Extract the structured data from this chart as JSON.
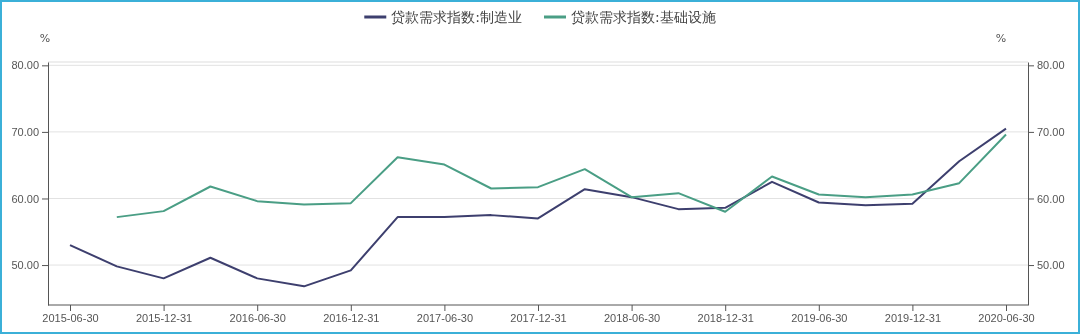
{
  "chart_data": {
    "type": "line",
    "categories": [
      "2015-06-30",
      null,
      "2015-12-31",
      null,
      "2016-06-30",
      null,
      "2016-12-31",
      null,
      "2017-06-30",
      null,
      "2017-12-31",
      null,
      "2018-06-30",
      null,
      "2018-12-31",
      null,
      "2019-06-30",
      null,
      "2019-12-31",
      null,
      "2020-06-30"
    ],
    "series": [
      {
        "name": "贷款需求指数:制造业",
        "color": "#3d3f6e",
        "values": [
          53.0,
          49.8,
          48.0,
          51.1,
          48.0,
          46.8,
          49.2,
          57.2,
          57.2,
          57.5,
          57.0,
          61.4,
          60.2,
          58.4,
          58.6,
          62.5,
          59.4,
          59.0,
          59.2,
          65.6,
          70.5
        ]
      },
      {
        "name": "贷款需求指数:基础设施",
        "color": "#4a9e85",
        "values": [
          null,
          57.2,
          58.1,
          61.8,
          59.6,
          59.1,
          59.3,
          66.2,
          65.1,
          61.5,
          61.7,
          64.4,
          60.2,
          60.8,
          58.0,
          63.3,
          60.6,
          60.2,
          60.6,
          62.3,
          69.6
        ]
      }
    ],
    "ylabel": "%",
    "y2label": "%",
    "ylim": [
      44,
      80.5
    ],
    "yticks": [
      {
        "value": 50,
        "label": "50.00"
      },
      {
        "value": 60,
        "label": "60.00"
      },
      {
        "value": 70,
        "label": "70.00"
      },
      {
        "value": 80,
        "label": "80.00"
      }
    ],
    "y2lim": [
      44,
      80.5
    ],
    "y2ticks": [
      {
        "value": 50,
        "label": "50.00"
      },
      {
        "value": 60,
        "label": "60.00"
      },
      {
        "value": 70,
        "label": "70.00"
      },
      {
        "value": 80,
        "label": "80.00"
      }
    ],
    "grid": "y",
    "legend": "top",
    "line_style": "solid",
    "marker": "none"
  }
}
